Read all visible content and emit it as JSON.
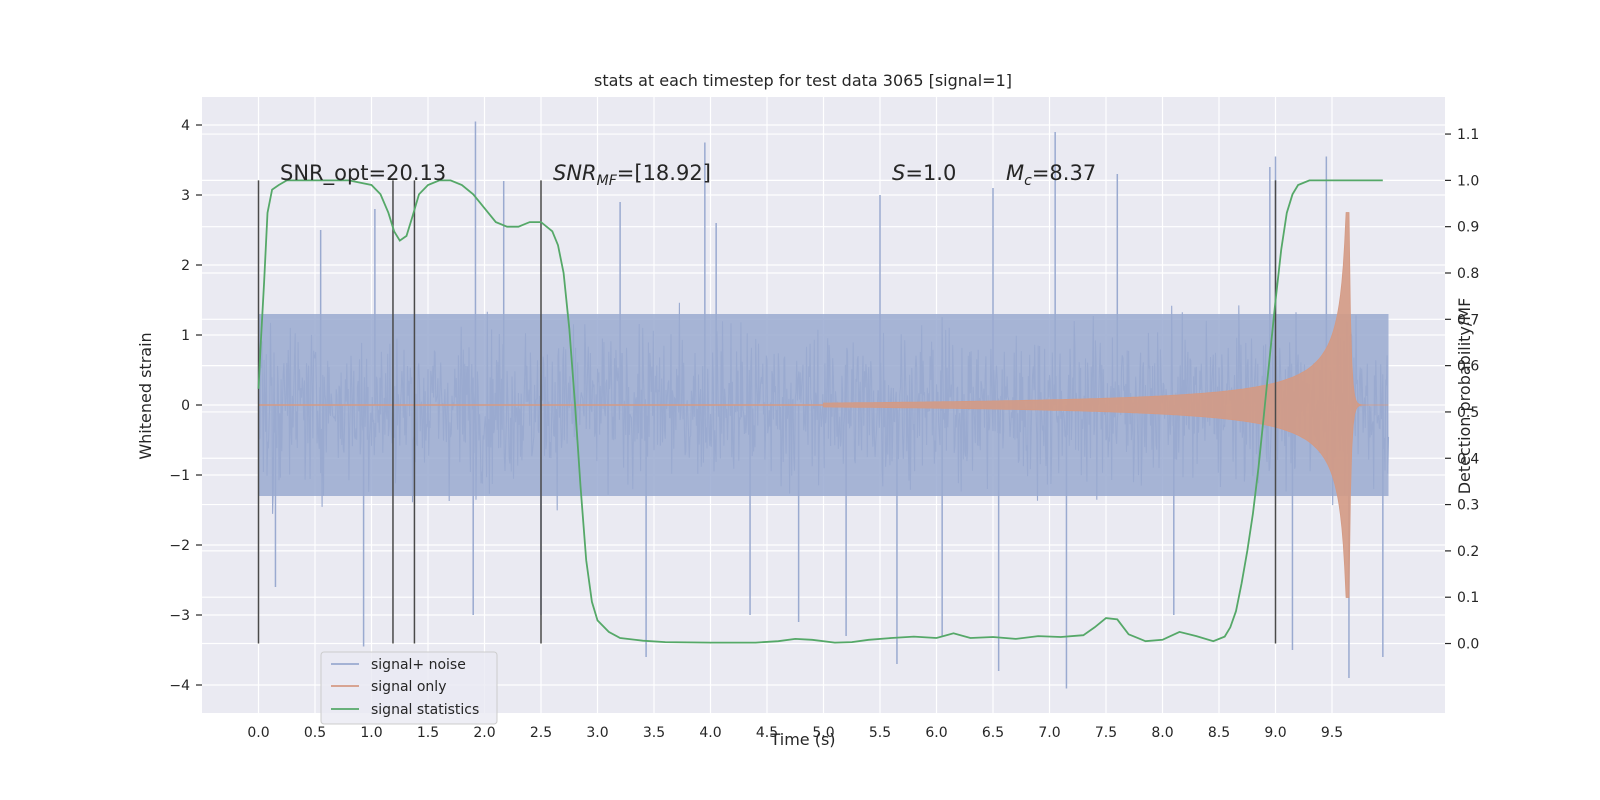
{
  "chart_data": {
    "type": "line",
    "title": "stats at each timestep for test data 3065 [signal=1]",
    "xlabel": "Time (s)",
    "ylabel": "Whitened strain",
    "y2label": "Detection probability/MF",
    "xlim": [
      -0.5,
      10.5
    ],
    "ylim": [
      -4.4,
      4.4
    ],
    "y2lim": [
      -0.15,
      1.18
    ],
    "x_ticks": [
      0.0,
      0.5,
      1.0,
      1.5,
      2.0,
      2.5,
      3.0,
      3.5,
      4.0,
      4.5,
      5.0,
      5.5,
      6.0,
      6.5,
      7.0,
      7.5,
      8.0,
      8.5,
      9.0,
      9.5
    ],
    "x_tick_labels": [
      "0.0",
      "0.5",
      "1.0",
      "1.5",
      "2.0",
      "2.5",
      "3.0",
      "3.5",
      "4.0",
      "4.5",
      "5.0",
      "5.5",
      "6.0",
      "6.5",
      "7.0",
      "7.5",
      "8.0",
      "8.5",
      "9.0",
      "9.5"
    ],
    "y_ticks": [
      -4,
      -3,
      -2,
      -1,
      0,
      1,
      2,
      3,
      4
    ],
    "y_tick_labels": [
      "−4",
      "−3",
      "−2",
      "−1",
      "0",
      "1",
      "2",
      "3",
      "4"
    ],
    "y2_ticks": [
      0.0,
      0.1,
      0.2,
      0.3,
      0.4,
      0.5,
      0.6,
      0.7,
      0.8,
      0.9,
      1.0,
      1.1
    ],
    "y2_tick_labels": [
      "0.0",
      "0.1",
      "0.2",
      "0.3",
      "0.4",
      "0.5",
      "0.6",
      "0.7",
      "0.8",
      "0.9",
      "1.0",
      "1.1"
    ],
    "grid": true,
    "legend_position": "lower-left",
    "annotations": {
      "snr_opt": "SNR_opt=20.13",
      "snr_mf_base": "SNR",
      "snr_mf_sub": "MF",
      "snr_mf_value": "=[18.92]",
      "s_label": "S",
      "s_value": "=1.0",
      "mc_base": "M",
      "mc_sub": "c",
      "mc_value": "=8.37"
    },
    "vertical_markers": [
      0.0,
      1.19,
      1.38,
      2.5,
      9.0
    ],
    "series": [
      {
        "name": "signal+ noise",
        "color": "#9aaad0",
        "axis": "left",
        "style": "noise",
        "x_range": [
          0.0,
          10.0
        ],
        "amplitude_band": [
          -1.3,
          1.3
        ],
        "peaks": [
          [
            0.93,
            -3.45
          ],
          [
            1.03,
            2.8
          ],
          [
            1.92,
            4.05
          ],
          [
            1.9,
            -3.0
          ],
          [
            2.17,
            3.2
          ],
          [
            2.5,
            -3.0
          ],
          [
            3.43,
            -3.6
          ],
          [
            3.95,
            3.75
          ],
          [
            4.05,
            2.6
          ],
          [
            4.78,
            -3.1
          ],
          [
            5.2,
            -3.3
          ],
          [
            5.5,
            3.0
          ],
          [
            5.65,
            -3.7
          ],
          [
            6.05,
            -3.3
          ],
          [
            6.5,
            3.1
          ],
          [
            6.55,
            -3.8
          ],
          [
            7.05,
            3.9
          ],
          [
            7.15,
            -4.05
          ],
          [
            7.6,
            3.3
          ],
          [
            8.1,
            -3.0
          ],
          [
            8.95,
            3.4
          ],
          [
            9.0,
            3.55
          ],
          [
            9.15,
            -3.5
          ],
          [
            9.45,
            3.55
          ],
          [
            9.65,
            -3.9
          ],
          [
            9.95,
            -3.6
          ],
          [
            0.55,
            2.5
          ],
          [
            0.15,
            -2.6
          ],
          [
            3.2,
            2.9
          ],
          [
            4.35,
            -3.0
          ]
        ]
      },
      {
        "name": "signal only",
        "color": "#d49a84",
        "axis": "left",
        "style": "chirp",
        "start": 5.0,
        "peak_time": 9.65,
        "peak_amplitude": 2.75,
        "end": 10.0
      },
      {
        "name": "signal statistics",
        "color": "#55a868",
        "axis": "right",
        "x": [
          0.0,
          0.02,
          0.05,
          0.08,
          0.12,
          0.18,
          0.25,
          0.4,
          0.6,
          0.8,
          1.0,
          1.08,
          1.15,
          1.2,
          1.25,
          1.31,
          1.36,
          1.42,
          1.5,
          1.6,
          1.7,
          1.8,
          1.9,
          2.0,
          2.1,
          2.2,
          2.3,
          2.4,
          2.5,
          2.6,
          2.65,
          2.7,
          2.75,
          2.8,
          2.85,
          2.9,
          2.95,
          3.0,
          3.1,
          3.2,
          3.4,
          3.6,
          4.0,
          4.4,
          4.6,
          4.75,
          4.9,
          5.1,
          5.25,
          5.4,
          5.6,
          5.8,
          6.0,
          6.15,
          6.3,
          6.5,
          6.7,
          6.9,
          7.1,
          7.3,
          7.4,
          7.5,
          7.6,
          7.7,
          7.85,
          8.0,
          8.15,
          8.3,
          8.45,
          8.55,
          8.6,
          8.65,
          8.7,
          8.75,
          8.8,
          8.85,
          8.9,
          8.95,
          9.0,
          9.05,
          9.1,
          9.15,
          9.2,
          9.3,
          9.5,
          9.7,
          9.95
        ],
        "values": [
          0.55,
          0.65,
          0.78,
          0.93,
          0.98,
          0.99,
          1.0,
          1.0,
          1.0,
          1.0,
          0.99,
          0.97,
          0.93,
          0.89,
          0.87,
          0.88,
          0.92,
          0.97,
          0.99,
          1.0,
          1.0,
          0.99,
          0.97,
          0.94,
          0.91,
          0.9,
          0.9,
          0.91,
          0.91,
          0.89,
          0.86,
          0.8,
          0.68,
          0.52,
          0.34,
          0.18,
          0.09,
          0.05,
          0.025,
          0.012,
          0.006,
          0.003,
          0.002,
          0.002,
          0.005,
          0.01,
          0.008,
          0.002,
          0.003,
          0.008,
          0.012,
          0.015,
          0.012,
          0.022,
          0.012,
          0.014,
          0.01,
          0.016,
          0.014,
          0.018,
          0.035,
          0.055,
          0.052,
          0.02,
          0.005,
          0.008,
          0.025,
          0.016,
          0.005,
          0.015,
          0.035,
          0.07,
          0.13,
          0.2,
          0.28,
          0.38,
          0.5,
          0.62,
          0.74,
          0.85,
          0.93,
          0.97,
          0.99,
          1.0,
          1.0,
          1.0,
          1.0
        ]
      }
    ]
  }
}
